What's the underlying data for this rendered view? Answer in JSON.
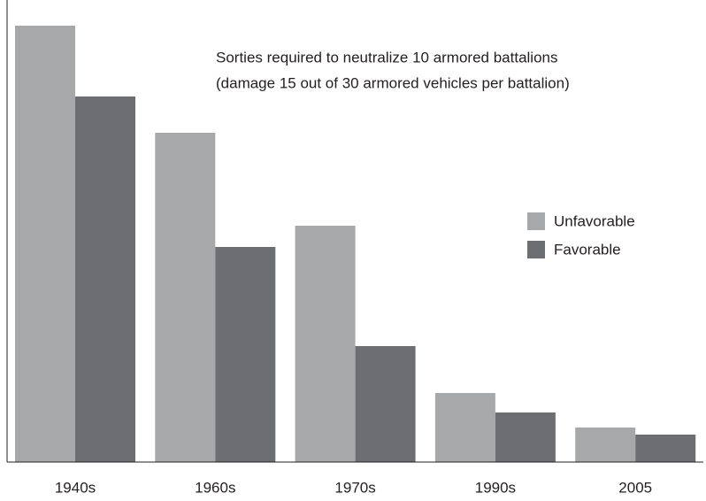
{
  "chart_data": {
    "type": "bar",
    "title": "Sorties required to neutralize 10 armored battalions",
    "subtitle": "(damage 15 out of 30 armored vehicles per battalion)",
    "categories": [
      "1940s",
      "1960s",
      "1970s",
      "1990s",
      "2005"
    ],
    "series": [
      {
        "name": "Unfavorable",
        "color": "#a7a8aa",
        "values": [
          493,
          372,
          267,
          78,
          39
        ]
      },
      {
        "name": "Favorable",
        "color": "#6d6e71",
        "values": [
          413,
          243,
          131,
          56,
          31
        ]
      }
    ],
    "ylim": [
      0,
      514
    ],
    "legend": "right"
  }
}
